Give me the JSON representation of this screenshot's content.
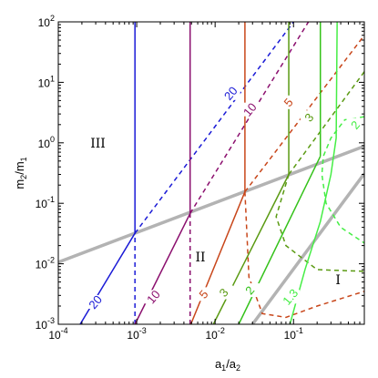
{
  "chart_data": {
    "type": "line",
    "title": "",
    "xlabel": "a1/a2",
    "ylabel": "m2/m1",
    "xscale": "log",
    "yscale": "log",
    "xlim": [
      0.0001,
      0.8
    ],
    "ylim": [
      0.001,
      100
    ],
    "grid": false,
    "x_ticks": [
      {
        "value": 0.0001,
        "base": "10",
        "exp": "-4"
      },
      {
        "value": 0.001,
        "base": "10",
        "exp": "-3"
      },
      {
        "value": 0.01,
        "base": "10",
        "exp": "-2"
      },
      {
        "value": 0.1,
        "base": "10",
        "exp": "-1"
      }
    ],
    "y_ticks": [
      {
        "value": 0.001,
        "base": "10",
        "exp": "-3"
      },
      {
        "value": 0.01,
        "base": "10",
        "exp": "-2"
      },
      {
        "value": 0.1,
        "base": "10",
        "exp": "-1"
      },
      {
        "value": 1,
        "base": "10",
        "exp": "0"
      },
      {
        "value": 10,
        "base": "10",
        "exp": "1"
      },
      {
        "value": 100,
        "base": "10",
        "exp": "2"
      }
    ],
    "regions": [
      {
        "label": "III",
        "x": 0.00032,
        "y": 1.0
      },
      {
        "label": "II",
        "x": 0.0065,
        "y": 0.013
      },
      {
        "label": "I",
        "x": 0.37,
        "y": 0.0055
      }
    ],
    "boundaries": [
      {
        "color": "#b3b3b3",
        "points": [
          [
            0.0001,
            0.0106
          ],
          [
            0.8,
            0.88
          ]
        ]
      },
      {
        "color": "#b3b3b3",
        "points": [
          [
            0.03,
            0.001
          ],
          [
            0.8,
            0.31
          ]
        ]
      }
    ],
    "contours": [
      {
        "color": "#1a1ad6",
        "labels": [
          "20",
          "20"
        ],
        "solid_low": [
          [
            0.00019,
            0.001
          ],
          [
            0.00095,
            0.032
          ]
        ],
        "solid_vertical": {
          "x": 0.00095,
          "y_from": 0.032,
          "y_to": 100
        },
        "dashed_high": [
          [
            0.00095,
            0.032
          ],
          [
            0.1,
            100
          ]
        ],
        "dashed_vertical": {
          "x": 0.00095,
          "y_from": 0.001,
          "y_to": 0.032
        },
        "label_high": {
          "x": 0.016,
          "y": 6.5
        },
        "label_low": {
          "x": 0.0003,
          "y": 0.0023
        }
      },
      {
        "color": "#8b0f6e",
        "labels": [
          "10",
          "10"
        ],
        "solid_low": [
          [
            0.00095,
            0.001
          ],
          [
            0.0048,
            0.068
          ]
        ],
        "solid_vertical": {
          "x": 0.0048,
          "y_from": 0.068,
          "y_to": 100
        },
        "dashed_high": [
          [
            0.0048,
            0.068
          ],
          [
            0.155,
            100
          ]
        ],
        "dashed_vertical": {
          "x": 0.0048,
          "y_from": 0.001,
          "y_to": 0.068
        },
        "label_high": {
          "x": 0.028,
          "y": 3.5
        },
        "label_low": {
          "x": 0.00165,
          "y": 0.0028
        }
      },
      {
        "color": "#c8461a",
        "labels": [
          "5",
          "5"
        ],
        "solid_low": [
          [
            0.0049,
            0.001
          ],
          [
            0.024,
            0.155
          ]
        ],
        "solid_vertical": {
          "x": 0.024,
          "y_from": 0.155,
          "y_to": 100
        },
        "dashed_high": [
          [
            0.024,
            0.155
          ],
          [
            0.8,
            60
          ]
        ],
        "dashed_curve": [
          [
            0.024,
            0.155
          ],
          [
            0.027,
            0.006
          ],
          [
            0.04,
            0.0015
          ],
          [
            0.08,
            0.0013
          ],
          [
            0.2,
            0.002
          ],
          [
            0.8,
            0.0035
          ]
        ],
        "label_high": {
          "x": 0.087,
          "y": 4.6
        },
        "label_low": {
          "x": 0.0072,
          "y": 0.0031
        }
      },
      {
        "color": "#5a9a12",
        "labels": [
          "3",
          "3"
        ],
        "solid_low": [
          [
            0.0095,
            0.001
          ],
          [
            0.087,
            0.3
          ]
        ],
        "solid_vertical": {
          "x": 0.087,
          "y_from": 0.3,
          "y_to": 100
        },
        "dashed_high": [
          [
            0.087,
            0.3
          ],
          [
            0.8,
            15
          ]
        ],
        "dashed_curve": [
          [
            0.087,
            0.3
          ],
          [
            0.06,
            0.06
          ],
          [
            0.08,
            0.02
          ],
          [
            0.2,
            0.008
          ],
          [
            0.8,
            0.0075
          ]
        ],
        "label_high": {
          "x": 0.16,
          "y": 2.6
        },
        "label_low": {
          "x": 0.013,
          "y": 0.0033
        }
      },
      {
        "color": "#34c21a",
        "labels": [
          "2"
        ],
        "solid_low": [
          [
            0.02,
            0.001
          ],
          [
            0.22,
            0.6
          ]
        ],
        "solid_vertical": {
          "x": 0.22,
          "y_from": 0.6,
          "y_to": 100
        },
        "label_low": {
          "x": 0.028,
          "y": 0.0036
        }
      },
      {
        "color": "#45ee45",
        "labels": [
          "2",
          "1.3"
        ],
        "dashed_curve": [
          [
            0.8,
            2.7
          ],
          [
            0.45,
            2.4
          ],
          [
            0.3,
            1.2
          ],
          [
            0.24,
            0.6
          ],
          [
            0.23,
            0.3
          ],
          [
            0.26,
            0.1
          ],
          [
            0.4,
            0.04
          ],
          [
            0.8,
            0.022
          ]
        ],
        "solid_curve": [
          [
            0.09,
            0.001
          ],
          [
            0.14,
            0.008
          ],
          [
            0.22,
            0.05
          ],
          [
            0.3,
            0.3
          ],
          [
            0.35,
            1.2
          ],
          [
            0.36,
            100
          ]
        ],
        "label_high": {
          "x": 0.62,
          "y": 1.95
        },
        "label_low": {
          "x": 0.092,
          "y": 0.0028
        }
      }
    ]
  }
}
